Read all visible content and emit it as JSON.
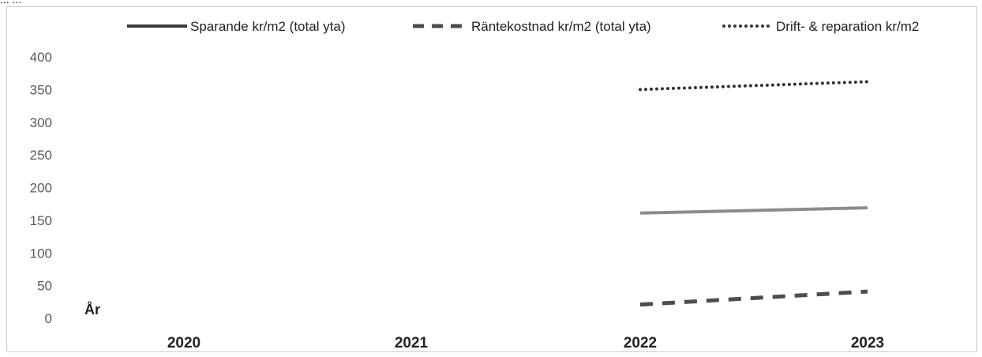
{
  "chart_data": {
    "type": "line",
    "title": "",
    "xlabel": "År",
    "ylabel": "",
    "categories": [
      "2020",
      "2021",
      "2022",
      "2023"
    ],
    "ylim": [
      0,
      400
    ],
    "yticks": [
      "0",
      "50",
      "100",
      "150",
      "200",
      "250",
      "300",
      "350",
      "400"
    ],
    "grid": false,
    "legend_position": "top-right",
    "series": [
      {
        "name": "Sparande kr/m2  (total yta)",
        "style": "solid",
        "color": "#8c8c8c",
        "legend_color": "#3c3c3c",
        "values": [
          null,
          null,
          161,
          169
        ]
      },
      {
        "name": "Räntekostnad kr/m2  (total yta)",
        "style": "dashed",
        "color": "#4d4d4d",
        "values": [
          null,
          null,
          21,
          41
        ]
      },
      {
        "name": "Drift- & reparation kr/m2",
        "style": "dotted",
        "color": "#333333",
        "values": [
          null,
          null,
          350,
          362
        ]
      }
    ]
  },
  "top_fragment": "... ..."
}
